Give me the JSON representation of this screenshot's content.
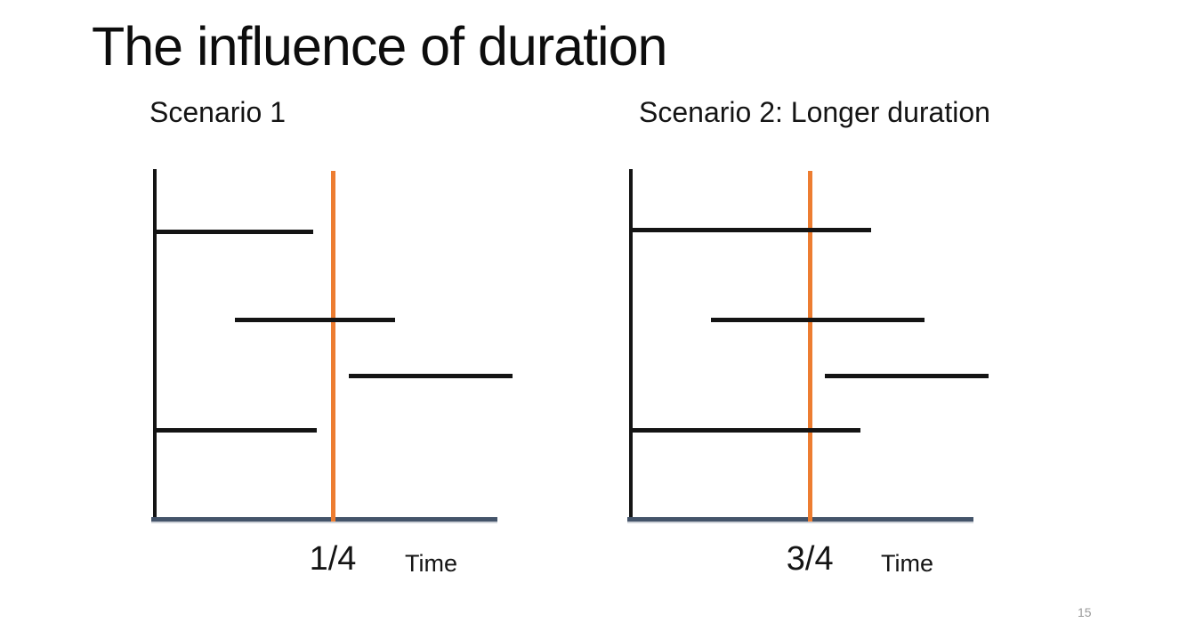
{
  "slide": {
    "title": "The influence of duration",
    "page_number": "15"
  },
  "colors": {
    "marker_orange": "#ED7D31",
    "axis_slate": "#44546A",
    "line_black": "#141414",
    "page_number_gray": "#9a9a9a"
  },
  "chart_data": [
    {
      "type": "gantt",
      "title": "Scenario 1",
      "xlabel": "Time",
      "axis_numeric_labels": false,
      "x_range_frac": [
        0,
        1
      ],
      "marker": {
        "label": "1/4",
        "x_frac": 0.505,
        "color": "#ED7D31"
      },
      "intervals": [
        {
          "row_frac": 0.178,
          "start_frac": 0.0,
          "end_frac": 0.45
        },
        {
          "row_frac": 0.43,
          "start_frac": 0.23,
          "end_frac": 0.68
        },
        {
          "row_frac": 0.59,
          "start_frac": 0.55,
          "end_frac": 1.01
        },
        {
          "row_frac": 0.745,
          "start_frac": 0.0,
          "end_frac": 0.46
        }
      ]
    },
    {
      "type": "gantt",
      "title": "Scenario 2: Longer duration",
      "xlabel": "Time",
      "axis_numeric_labels": false,
      "x_range_frac": [
        0,
        1
      ],
      "marker": {
        "label": "3/4",
        "x_frac": 0.508,
        "color": "#ED7D31"
      },
      "intervals": [
        {
          "row_frac": 0.173,
          "start_frac": 0.0,
          "end_frac": 0.68
        },
        {
          "row_frac": 0.43,
          "start_frac": 0.23,
          "end_frac": 0.83
        },
        {
          "row_frac": 0.59,
          "start_frac": 0.55,
          "end_frac": 1.01
        },
        {
          "row_frac": 0.745,
          "start_frac": 0.0,
          "end_frac": 0.65
        }
      ]
    }
  ]
}
